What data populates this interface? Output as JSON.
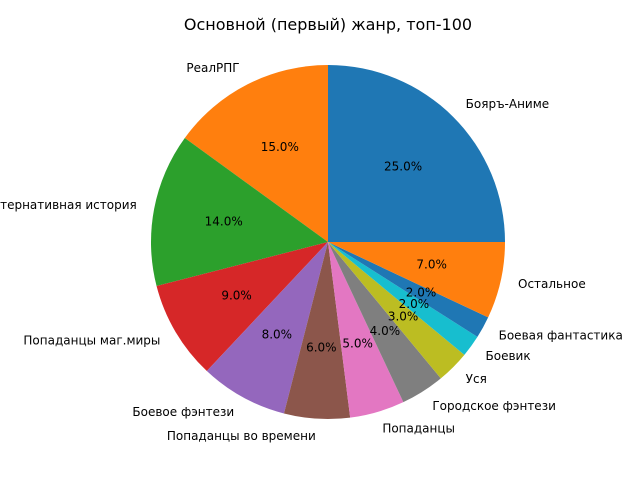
{
  "chart_data": {
    "type": "pie",
    "title": "Основной (первый) жанр, топ-100",
    "start_angle_deg": 0,
    "direction": "counterclockwise",
    "slices": [
      {
        "label": "Бояръ-Аниме",
        "value": 25,
        "pct_label": "25.0%",
        "color": "#1f77b4"
      },
      {
        "label": "РеалРПГ",
        "value": 15,
        "pct_label": "15.0%",
        "color": "#ff7f0e"
      },
      {
        "label": "Альтернативная история",
        "value": 14,
        "pct_label": "14.0%",
        "color": "#2ca02c"
      },
      {
        "label": "Попаданцы маг.миры",
        "value": 9,
        "pct_label": "9.0%",
        "color": "#d62728"
      },
      {
        "label": "Боевое фэнтези",
        "value": 8,
        "pct_label": "8.0%",
        "color": "#9467bd"
      },
      {
        "label": "Попаданцы во времени",
        "value": 6,
        "pct_label": "6.0%",
        "color": "#8c564b"
      },
      {
        "label": "Попаданцы",
        "value": 5,
        "pct_label": "5.0%",
        "color": "#e377c2"
      },
      {
        "label": "Городское фэнтези",
        "value": 4,
        "pct_label": "4.0%",
        "color": "#7f7f7f"
      },
      {
        "label": "Уся",
        "value": 3,
        "pct_label": "3.0%",
        "color": "#bcbd22"
      },
      {
        "label": "Боевик",
        "value": 2,
        "pct_label": "2.0%",
        "color": "#17becf"
      },
      {
        "label": "Боевая фантастика",
        "value": 2,
        "pct_label": "2.0%",
        "color": "#1f77b4"
      },
      {
        "label": "Остальное",
        "value": 7,
        "pct_label": "7.0%",
        "color": "#ff7f0e"
      }
    ]
  }
}
